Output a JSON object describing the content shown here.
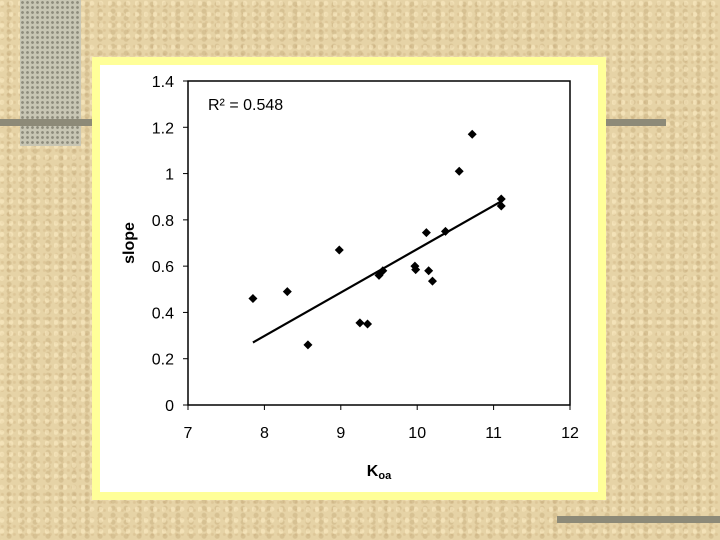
{
  "chart_data": {
    "type": "scatter",
    "annotation": "R² = 0.548",
    "y_label": "slope",
    "x_label": {
      "main": "K",
      "sub": "oa"
    },
    "x": [
      7.85,
      8.3,
      8.57,
      8.98,
      9.25,
      9.35,
      9.5,
      9.55,
      9.97,
      9.98,
      10.12,
      10.15,
      10.2,
      10.37,
      10.55,
      10.72,
      11.1,
      11.1
    ],
    "values": [
      0.46,
      0.49,
      0.26,
      0.67,
      0.355,
      0.35,
      0.56,
      0.58,
      0.6,
      0.585,
      0.745,
      0.58,
      0.535,
      0.75,
      1.01,
      1.17,
      0.89,
      0.86
    ],
    "color": "#000000",
    "trendline": {
      "x": [
        7.85,
        11.1
      ],
      "y": [
        0.27,
        0.88
      ]
    },
    "xlim": [
      7,
      12
    ],
    "xticks": [
      7,
      8,
      9,
      10,
      11,
      12
    ],
    "ylim": [
      0,
      1.4
    ],
    "yticks": [
      0,
      0.2,
      0.4,
      0.6,
      0.8,
      1,
      1.2,
      1.4
    ],
    "grid": false
  }
}
